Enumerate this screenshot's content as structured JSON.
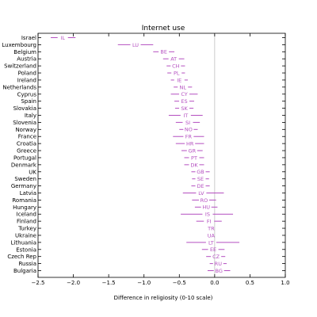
{
  "chart_data": {
    "type": "scatter",
    "title": "Internet use",
    "xlabel": "Difference in religiosity (0-10 scale)",
    "ylabel": "",
    "xlim": [
      -2.5,
      1.0
    ],
    "xticks": [
      "−2.5",
      "−2.0",
      "−1.5",
      "−1.0",
      "−0.5",
      "0.0",
      "0.5",
      "1.0"
    ],
    "xtick_values": [
      -2.5,
      -2.0,
      -1.5,
      -1.0,
      -0.5,
      0.0,
      0.5,
      1.0
    ],
    "reference_line": 0.0,
    "grid": false,
    "color": "#b44fc0",
    "rows": [
      {
        "country": "Israel",
        "code": "IL",
        "x": -2.15,
        "low": -2.32,
        "high": -1.97
      },
      {
        "country": "Luxembourg",
        "code": "LU",
        "x": -1.12,
        "low": -1.37,
        "high": -0.87
      },
      {
        "country": "Belgium",
        "code": "BE",
        "x": -0.72,
        "low": -0.87,
        "high": -0.57
      },
      {
        "country": "Austria",
        "code": "AT",
        "x": -0.58,
        "low": -0.73,
        "high": -0.43
      },
      {
        "country": "Switzerland",
        "code": "CH",
        "x": -0.55,
        "low": -0.68,
        "high": -0.42
      },
      {
        "country": "Poland",
        "code": "PL",
        "x": -0.54,
        "low": -0.67,
        "high": -0.42
      },
      {
        "country": "Ireland",
        "code": "IE",
        "x": -0.5,
        "low": -0.62,
        "high": -0.38
      },
      {
        "country": "Netherlands",
        "code": "NL",
        "x": -0.45,
        "low": -0.58,
        "high": -0.32
      },
      {
        "country": "Cyprus",
        "code": "CY",
        "x": -0.43,
        "low": -0.62,
        "high": -0.24
      },
      {
        "country": "Spain",
        "code": "ES",
        "x": -0.43,
        "low": -0.57,
        "high": -0.29
      },
      {
        "country": "Slovakia",
        "code": "SK",
        "x": -0.43,
        "low": -0.56,
        "high": -0.3
      },
      {
        "country": "Italy",
        "code": "IT",
        "x": -0.41,
        "low": -0.65,
        "high": -0.17
      },
      {
        "country": "Slovenia",
        "code": "SI",
        "x": -0.38,
        "low": -0.55,
        "high": -0.21
      },
      {
        "country": "Norway",
        "code": "NO",
        "x": -0.37,
        "low": -0.5,
        "high": -0.24
      },
      {
        "country": "France",
        "code": "FR",
        "x": -0.37,
        "low": -0.59,
        "high": -0.15
      },
      {
        "country": "Croatia",
        "code": "HR",
        "x": -0.35,
        "low": -0.55,
        "high": -0.15
      },
      {
        "country": "Greece",
        "code": "GR",
        "x": -0.32,
        "low": -0.47,
        "high": -0.17
      },
      {
        "country": "Portugal",
        "code": "PT",
        "x": -0.29,
        "low": -0.43,
        "high": -0.15
      },
      {
        "country": "Denmark",
        "code": "DK",
        "x": -0.29,
        "low": -0.43,
        "high": -0.15
      },
      {
        "country": "UK",
        "code": "GB",
        "x": -0.2,
        "low": -0.33,
        "high": -0.07
      },
      {
        "country": "Sweden",
        "code": "SE",
        "x": -0.2,
        "low": -0.32,
        "high": -0.08
      },
      {
        "country": "Germany",
        "code": "DE",
        "x": -0.2,
        "low": -0.33,
        "high": -0.07
      },
      {
        "country": "Latvia",
        "code": "LV",
        "x": -0.19,
        "low": -0.45,
        "high": 0.13
      },
      {
        "country": "Romania",
        "code": "RO",
        "x": -0.15,
        "low": -0.32,
        "high": 0.02
      },
      {
        "country": "Hungary",
        "code": "HU",
        "x": -0.12,
        "low": -0.28,
        "high": 0.04
      },
      {
        "country": "Iceland",
        "code": "IS",
        "x": -0.1,
        "low": -0.48,
        "high": 0.26
      },
      {
        "country": "Finland",
        "code": "FI",
        "x": -0.08,
        "low": -0.26,
        "high": 0.1
      },
      {
        "country": "Turkey",
        "code": "TR",
        "x": -0.05,
        "low": -0.05,
        "high": -0.05
      },
      {
        "country": "Ukraine",
        "code": "UA",
        "x": -0.05,
        "low": -0.05,
        "high": -0.05
      },
      {
        "country": "Lithuania",
        "code": "LT",
        "x": -0.05,
        "low": -0.4,
        "high": 0.35
      },
      {
        "country": "Estonia",
        "code": "EE",
        "x": -0.02,
        "low": -0.18,
        "high": 0.14
      },
      {
        "country": "Czech Rep",
        "code": "CZ",
        "x": 0.02,
        "low": -0.12,
        "high": 0.15
      },
      {
        "country": "Russia",
        "code": "RU",
        "x": 0.05,
        "low": -0.07,
        "high": 0.17
      },
      {
        "country": "Bulgaria",
        "code": "BG",
        "x": 0.06,
        "low": -0.1,
        "high": 0.22
      }
    ]
  }
}
